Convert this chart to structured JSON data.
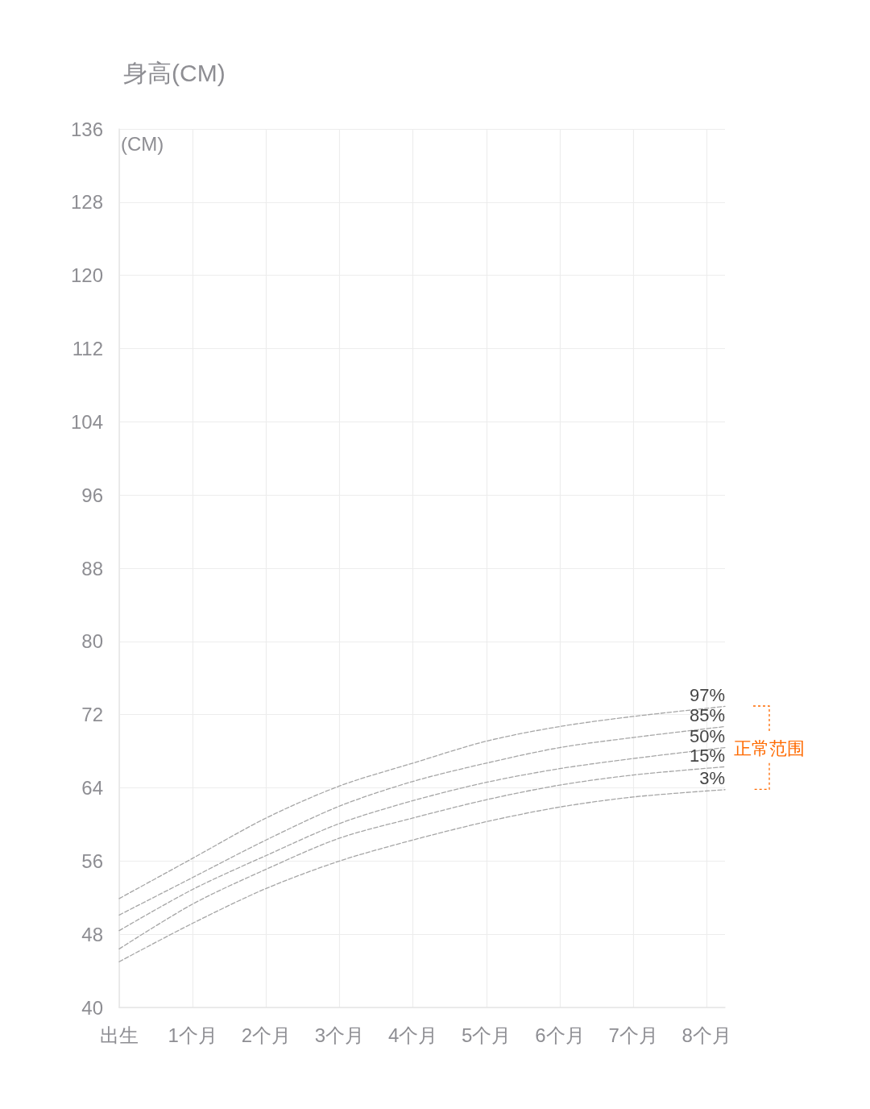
{
  "chart_data": {
    "type": "line",
    "title": "身高(CM)",
    "ylabel": "(CM)",
    "x": [
      0,
      1,
      2,
      3,
      4,
      5,
      6,
      7,
      8.25
    ],
    "series": [
      {
        "name": "97%",
        "color": "#a6a6a6",
        "values": [
          51.9,
          56.3,
          60.7,
          64.2,
          66.7,
          69.1,
          70.7,
          71.8,
          72.9
        ]
      },
      {
        "name": "85%",
        "color": "#a6a6a6",
        "values": [
          50.1,
          54.2,
          58.3,
          62.0,
          64.7,
          66.7,
          68.4,
          69.5,
          70.7
        ]
      },
      {
        "name": "50%",
        "color": "#a6a6a6",
        "values": [
          48.4,
          52.9,
          56.6,
          60.1,
          62.6,
          64.6,
          66.1,
          67.2,
          68.4
        ]
      },
      {
        "name": "15%",
        "color": "#a6a6a6",
        "values": [
          46.4,
          51.3,
          55.1,
          58.5,
          60.7,
          62.7,
          64.3,
          65.4,
          66.3
        ]
      },
      {
        "name": "3%",
        "color": "#a6a6a6",
        "values": [
          45.0,
          49.2,
          53.0,
          56.0,
          58.3,
          60.3,
          61.9,
          63.0,
          63.8
        ]
      }
    ],
    "xlim": [
      0,
      8.25
    ],
    "xticks": [
      {
        "value": 0,
        "label": "出生"
      },
      {
        "value": 1,
        "label": "1个月"
      },
      {
        "value": 2,
        "label": "2个月"
      },
      {
        "value": 3,
        "label": "3个月"
      },
      {
        "value": 4,
        "label": "4个月"
      },
      {
        "value": 5,
        "label": "5个月"
      },
      {
        "value": 6,
        "label": "6个月"
      },
      {
        "value": 7,
        "label": "7个月"
      },
      {
        "value": 8,
        "label": "8个月"
      }
    ],
    "ylim": [
      40,
      136
    ],
    "yticks": [
      40,
      48,
      56,
      64,
      72,
      80,
      88,
      96,
      104,
      112,
      120,
      128,
      136
    ],
    "annotations": [
      "正常范围"
    ],
    "grid": true,
    "legend": false,
    "marker": "none",
    "line_style": "dashed"
  }
}
